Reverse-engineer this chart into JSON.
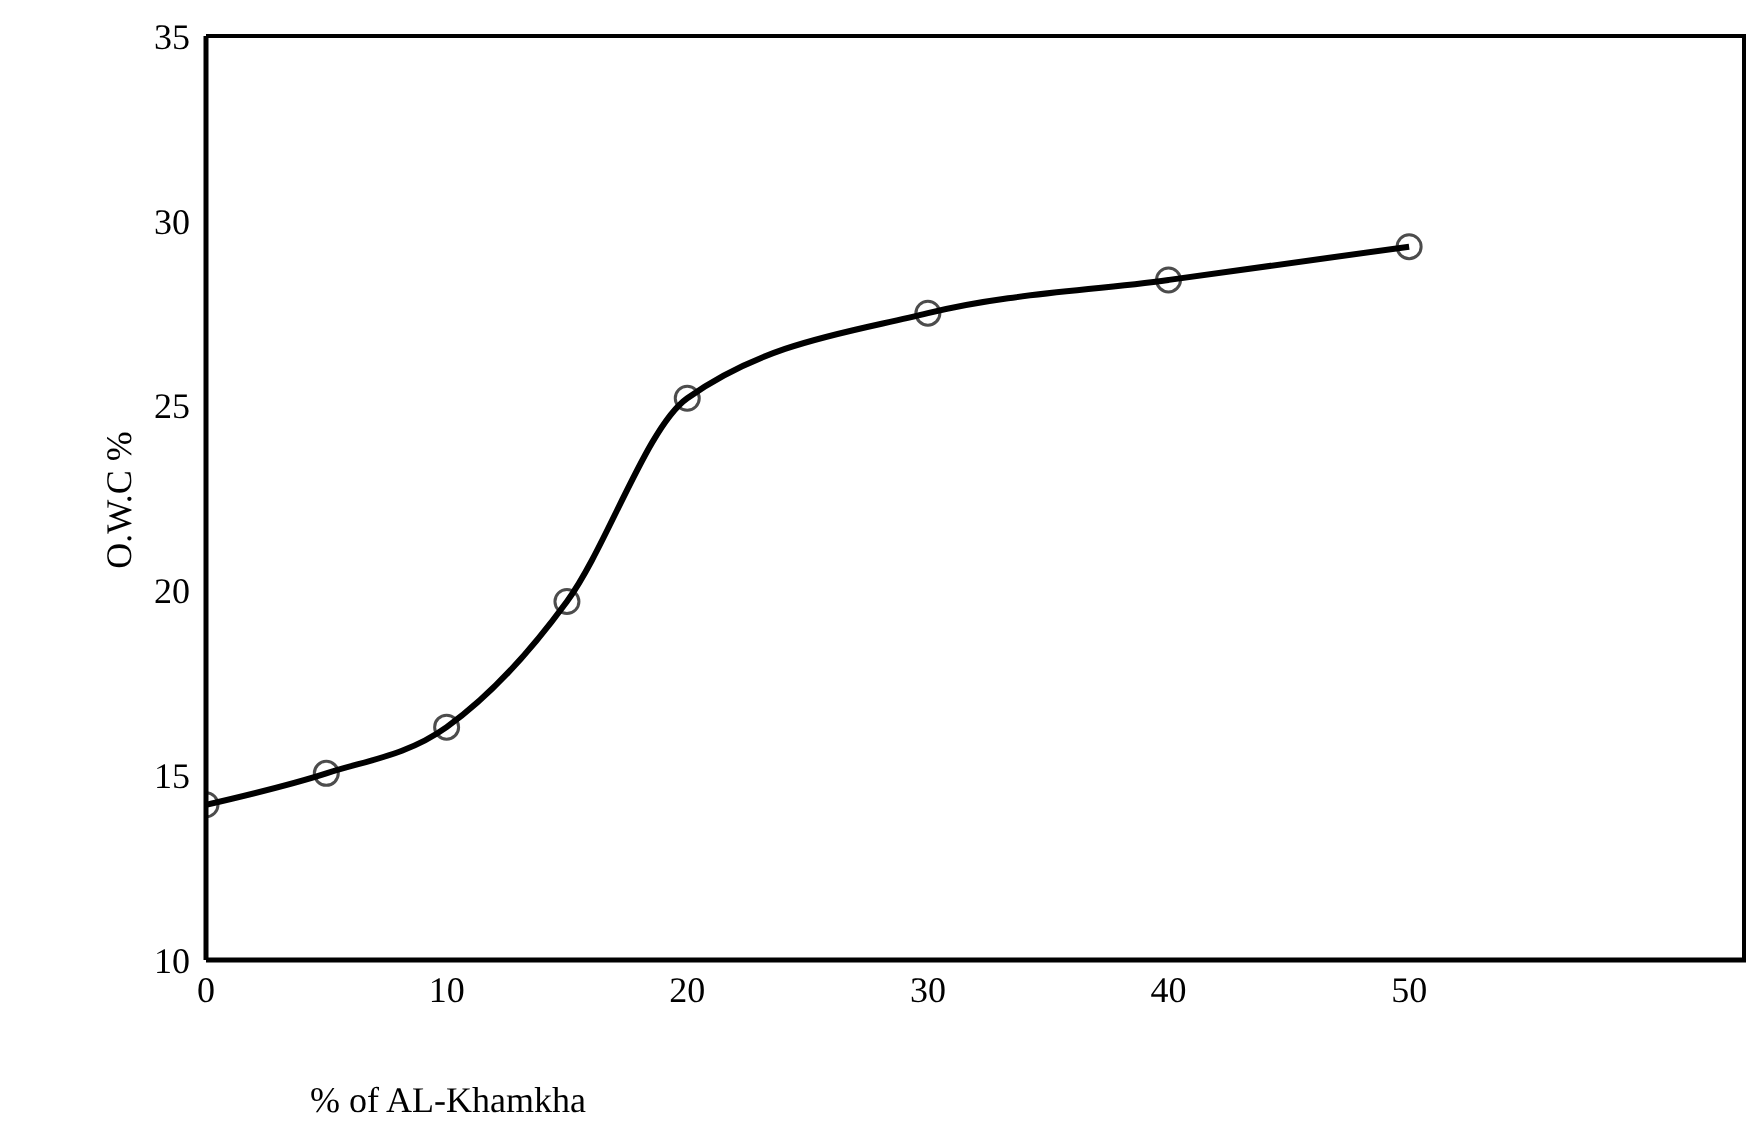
{
  "chart_data": {
    "type": "line",
    "xlabel": "% of AL-Khamkha",
    "ylabel": "O.W.C %",
    "x": [
      0,
      5,
      10,
      15,
      20,
      30,
      40,
      50
    ],
    "series": [
      {
        "color": "#000000",
        "values": [
          14.2,
          15.05,
          16.3,
          19.7,
          25.2,
          27.5,
          28.4,
          29.3
        ]
      }
    ],
    "xlim": [
      0,
      64
    ],
    "xticks": [
      0,
      10,
      20,
      30,
      40,
      50
    ],
    "ylim": [
      10,
      35
    ],
    "yticks": [
      10,
      15,
      20,
      25,
      30,
      35
    ],
    "grid": false,
    "legend": false,
    "marker": "circle",
    "line_style": "solid"
  }
}
